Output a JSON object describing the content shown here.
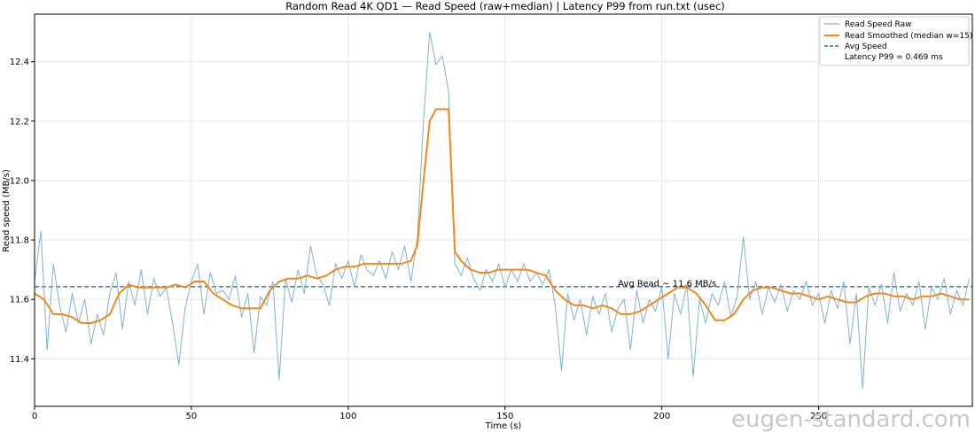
{
  "chart_data": {
    "type": "line",
    "title": "Random Read 4K QD1 — Read Speed (raw+median) | Latency P99 from run.txt (usec)",
    "xlabel": "Time (s)",
    "ylabel": "Read speed (MB/s)",
    "xlim": [
      0,
      299
    ],
    "ylim": [
      11.24,
      12.56
    ],
    "xticks": [
      0,
      50,
      100,
      150,
      200,
      250
    ],
    "yticks": [
      11.4,
      11.6,
      11.8,
      12.0,
      12.2,
      12.4
    ],
    "ytick_labels": [
      "11.4",
      "11.6",
      "11.8",
      "12.0",
      "12.2",
      "12.4"
    ],
    "grid": true,
    "legend_position": "top-right",
    "series": [
      {
        "name": "Read Speed Raw",
        "color": "#7fb2d5",
        "style": "solid-thin",
        "x": [
          0,
          2,
          4,
          6,
          8,
          10,
          12,
          14,
          16,
          18,
          20,
          22,
          24,
          26,
          28,
          30,
          32,
          34,
          36,
          38,
          40,
          42,
          44,
          46,
          48,
          50,
          52,
          54,
          56,
          58,
          60,
          62,
          64,
          66,
          68,
          70,
          72,
          74,
          76,
          78,
          80,
          82,
          84,
          86,
          88,
          90,
          92,
          94,
          96,
          98,
          100,
          102,
          104,
          106,
          108,
          110,
          112,
          114,
          116,
          118,
          120,
          122,
          124,
          126,
          128,
          130,
          132,
          134,
          136,
          138,
          140,
          142,
          144,
          146,
          148,
          150,
          152,
          154,
          156,
          158,
          160,
          162,
          164,
          166,
          168,
          170,
          172,
          174,
          176,
          178,
          180,
          182,
          184,
          186,
          188,
          190,
          192,
          194,
          196,
          198,
          200,
          202,
          204,
          206,
          208,
          210,
          212,
          214,
          216,
          218,
          220,
          222,
          224,
          226,
          228,
          230,
          232,
          234,
          236,
          238,
          240,
          242,
          244,
          246,
          248,
          250,
          252,
          254,
          256,
          258,
          260,
          262,
          264,
          266,
          268,
          270,
          272,
          274,
          276,
          278,
          280,
          282,
          284,
          286,
          288,
          290,
          292,
          294,
          296,
          298
        ],
        "values": [
          11.66,
          11.83,
          11.43,
          11.72,
          11.58,
          11.49,
          11.62,
          11.52,
          11.6,
          11.45,
          11.55,
          11.48,
          11.62,
          11.69,
          11.5,
          11.66,
          11.58,
          11.7,
          11.55,
          11.67,
          11.61,
          11.64,
          11.52,
          11.38,
          11.57,
          11.66,
          11.72,
          11.55,
          11.69,
          11.62,
          11.63,
          11.6,
          11.68,
          11.54,
          11.62,
          11.42,
          11.61,
          11.58,
          11.66,
          11.33,
          11.67,
          11.59,
          11.7,
          11.62,
          11.78,
          11.68,
          11.65,
          11.58,
          11.72,
          11.67,
          11.73,
          11.64,
          11.75,
          11.7,
          11.68,
          11.73,
          11.67,
          11.76,
          11.7,
          11.78,
          11.66,
          11.8,
          12.2,
          12.5,
          12.39,
          12.42,
          12.3,
          11.72,
          11.68,
          11.74,
          11.67,
          11.63,
          11.7,
          11.66,
          11.72,
          11.64,
          11.7,
          11.66,
          11.72,
          11.66,
          11.69,
          11.65,
          11.7,
          11.58,
          11.36,
          11.62,
          11.53,
          11.6,
          11.48,
          11.61,
          11.55,
          11.62,
          11.49,
          11.57,
          11.6,
          11.43,
          11.63,
          11.52,
          11.6,
          11.56,
          11.64,
          11.4,
          11.62,
          11.55,
          11.65,
          11.34,
          11.6,
          11.52,
          11.62,
          11.58,
          11.66,
          11.54,
          11.61,
          11.81,
          11.6,
          11.66,
          11.55,
          11.64,
          11.59,
          11.65,
          11.56,
          11.63,
          11.6,
          11.66,
          11.58,
          11.62,
          11.52,
          11.63,
          11.57,
          11.66,
          11.45,
          11.62,
          11.3,
          11.64,
          11.58,
          11.65,
          11.52,
          11.69,
          11.56,
          11.62,
          11.58,
          11.66,
          11.5,
          11.64,
          11.6,
          11.67,
          11.55,
          11.63,
          11.58,
          11.67
        ]
      },
      {
        "name": "Read Smoothed (median w=15)",
        "color": "#f08a1c",
        "style": "solid-thick",
        "x": [
          0,
          3,
          6,
          9,
          12,
          15,
          18,
          21,
          24,
          27,
          30,
          33,
          36,
          39,
          42,
          45,
          48,
          51,
          54,
          57,
          60,
          63,
          66,
          69,
          72,
          75,
          78,
          81,
          84,
          87,
          90,
          93,
          96,
          99,
          102,
          105,
          108,
          111,
          114,
          117,
          120,
          122,
          124,
          126,
          128,
          130,
          132,
          134,
          136,
          139,
          142,
          145,
          148,
          151,
          154,
          157,
          160,
          163,
          166,
          169,
          172,
          175,
          178,
          181,
          184,
          187,
          190,
          193,
          196,
          199,
          202,
          205,
          208,
          211,
          214,
          217,
          220,
          223,
          226,
          229,
          232,
          235,
          238,
          241,
          244,
          247,
          250,
          253,
          256,
          259,
          262,
          265,
          268,
          271,
          274,
          277,
          280,
          283,
          286,
          289,
          292,
          295,
          298
        ],
        "values": [
          11.62,
          11.6,
          11.55,
          11.55,
          11.54,
          11.52,
          11.52,
          11.53,
          11.55,
          11.62,
          11.65,
          11.64,
          11.64,
          11.64,
          11.64,
          11.65,
          11.64,
          11.66,
          11.66,
          11.62,
          11.6,
          11.58,
          11.57,
          11.57,
          11.57,
          11.63,
          11.66,
          11.67,
          11.67,
          11.68,
          11.67,
          11.68,
          11.7,
          11.71,
          11.71,
          11.72,
          11.72,
          11.72,
          11.72,
          11.72,
          11.73,
          11.78,
          12.0,
          12.2,
          12.24,
          12.24,
          12.24,
          11.76,
          11.73,
          11.7,
          11.69,
          11.69,
          11.7,
          11.7,
          11.7,
          11.7,
          11.69,
          11.68,
          11.63,
          11.6,
          11.58,
          11.58,
          11.57,
          11.58,
          11.57,
          11.55,
          11.55,
          11.56,
          11.58,
          11.6,
          11.62,
          11.64,
          11.64,
          11.62,
          11.58,
          11.53,
          11.53,
          11.55,
          11.6,
          11.63,
          11.64,
          11.64,
          11.63,
          11.62,
          11.62,
          11.61,
          11.6,
          11.61,
          11.6,
          11.59,
          11.59,
          11.61,
          11.62,
          11.62,
          11.61,
          11.61,
          11.6,
          11.61,
          11.61,
          11.62,
          11.61,
          11.6,
          11.6
        ]
      },
      {
        "name": "Avg Speed",
        "color": "#1f77b4",
        "style": "dashed",
        "x": [
          0,
          299
        ],
        "values": [
          11.643,
          11.643
        ]
      }
    ],
    "legend_extra": "Latency P99 = 0.469 ms",
    "annotations": [
      {
        "text": "Avg Read ~ 11.6 MB/s",
        "x": 186,
        "y": 11.65
      }
    ],
    "watermark": "eugen-standard.com"
  }
}
